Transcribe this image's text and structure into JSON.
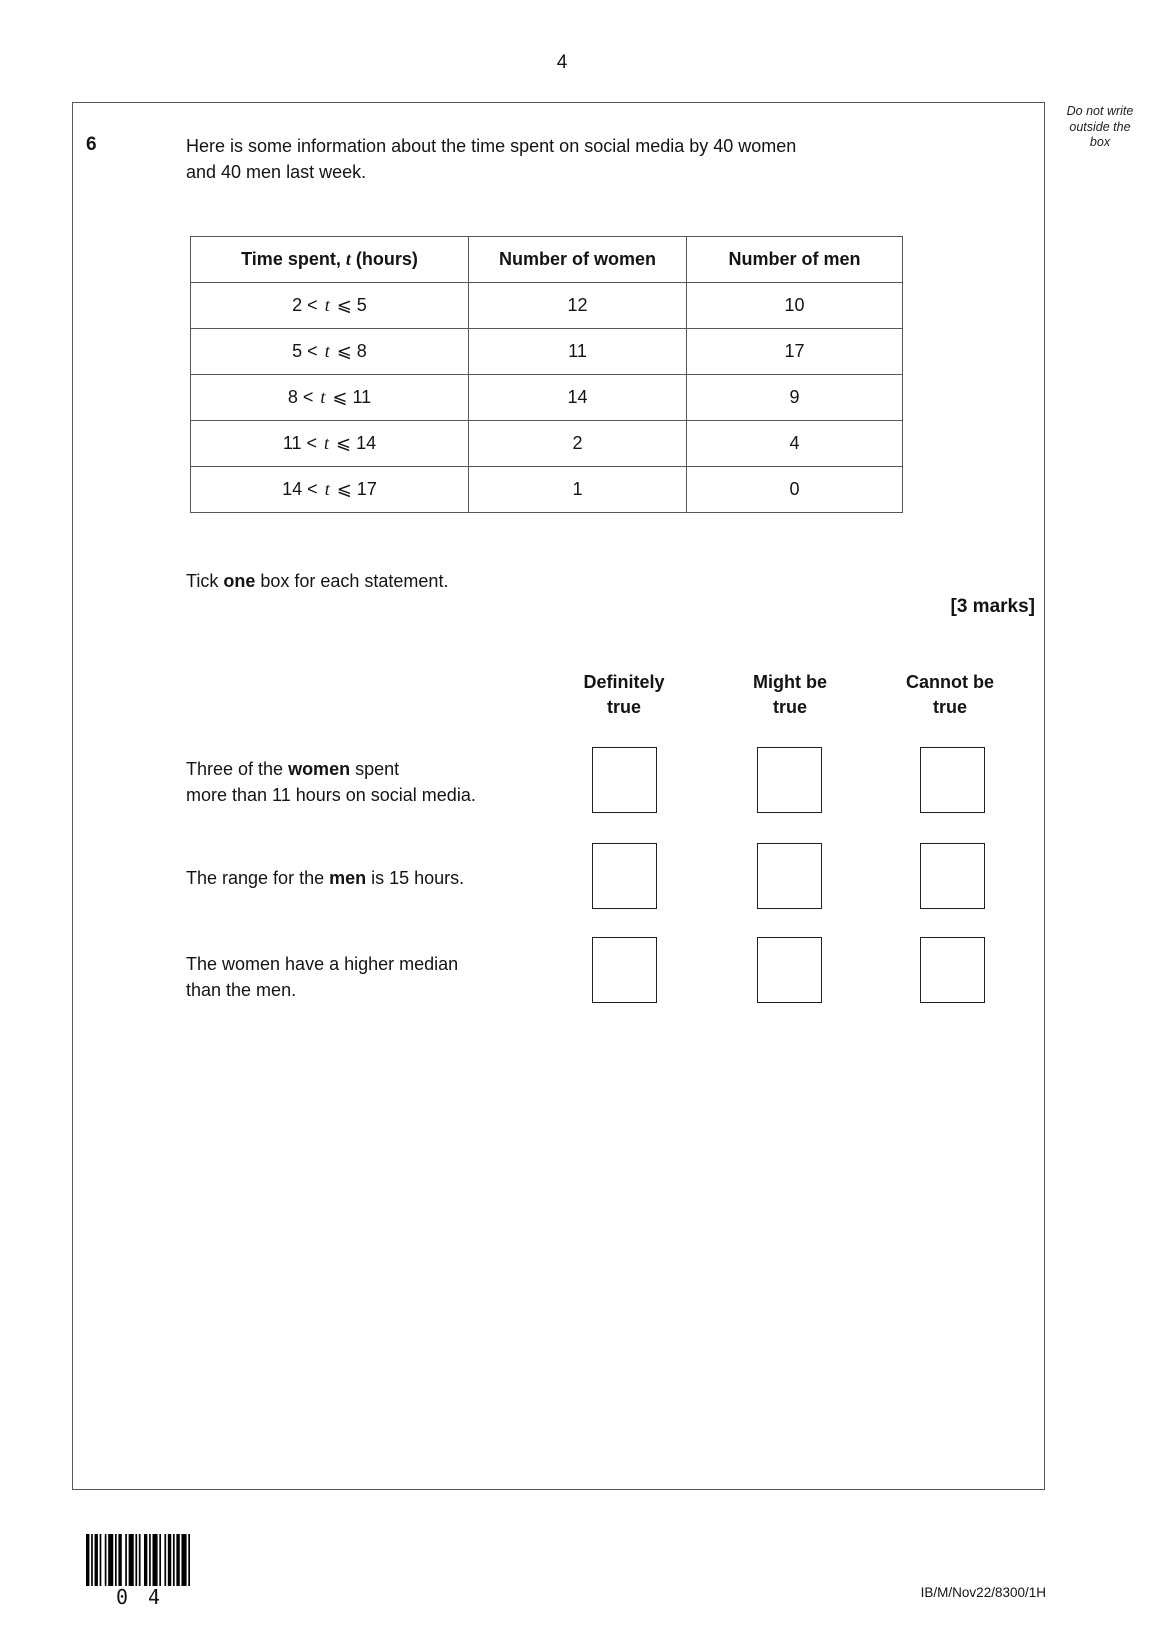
{
  "page": {
    "number": "4",
    "side_note_lines": [
      "Do not write",
      "outside the",
      "box"
    ]
  },
  "question": {
    "number": "6",
    "intro_lines": [
      "Here is some information about the time spent on social media by 40 women",
      "and 40 men last week."
    ],
    "tick_instruction": [
      {
        "text": "Tick ",
        "bold": false
      },
      {
        "text": "one",
        "bold": true
      },
      {
        "text": " box for each statement.",
        "bold": false
      }
    ],
    "marks": "[3 marks]"
  },
  "table": {
    "header": {
      "time_prefix": "Time spent, ",
      "time_var": "t",
      "time_suffix": " (hours)",
      "women": "Number of women",
      "men": "Number of men"
    },
    "lt_symbol": "<",
    "leq_symbol": "⩽",
    "rows": [
      {
        "lo": "2",
        "hi": "5",
        "women": "12",
        "men": "10"
      },
      {
        "lo": "5",
        "hi": "8",
        "women": "11",
        "men": "17"
      },
      {
        "lo": "8",
        "hi": "11",
        "women": "14",
        "men": "9"
      },
      {
        "lo": "11",
        "hi": "14",
        "women": "2",
        "men": "4"
      },
      {
        "lo": "14",
        "hi": "17",
        "women": "1",
        "men": "0"
      }
    ]
  },
  "options": [
    {
      "slug": "definitely-true",
      "lines": [
        "Definitely",
        "true"
      ]
    },
    {
      "slug": "might-be-true",
      "lines": [
        "Might be",
        "true"
      ]
    },
    {
      "slug": "cannot-be-true",
      "lines": [
        "Cannot be",
        "true"
      ]
    }
  ],
  "statements": [
    {
      "lines": [
        [
          {
            "text": "Three of the ",
            "bold": false
          },
          {
            "text": "women",
            "bold": true
          },
          {
            "text": " spent",
            "bold": false
          }
        ],
        [
          {
            "text": "more than 11 hours on social media.",
            "bold": false
          }
        ]
      ]
    },
    {
      "lines": [
        [
          {
            "text": "The range for the ",
            "bold": false
          },
          {
            "text": "men",
            "bold": true
          },
          {
            "text": " is 15 hours.",
            "bold": false
          }
        ]
      ]
    },
    {
      "lines": [
        [
          {
            "text": "The women have a higher median",
            "bold": false
          }
        ],
        [
          {
            "text": "than the men.",
            "bold": false
          }
        ]
      ]
    }
  ],
  "footer": {
    "barcode_digits": [
      "0",
      "4"
    ],
    "barcode_pattern": [
      2,
      1,
      1,
      1,
      2,
      1,
      1,
      2,
      1,
      1,
      3,
      1,
      1,
      1,
      2,
      2,
      1,
      1,
      3,
      1,
      1,
      1,
      1,
      2,
      2,
      1,
      1,
      1,
      3,
      1,
      1,
      2,
      1,
      1,
      2,
      1,
      1,
      1,
      2,
      1,
      3,
      1,
      1
    ],
    "code": "IB/M/Nov22/8300/1H"
  }
}
